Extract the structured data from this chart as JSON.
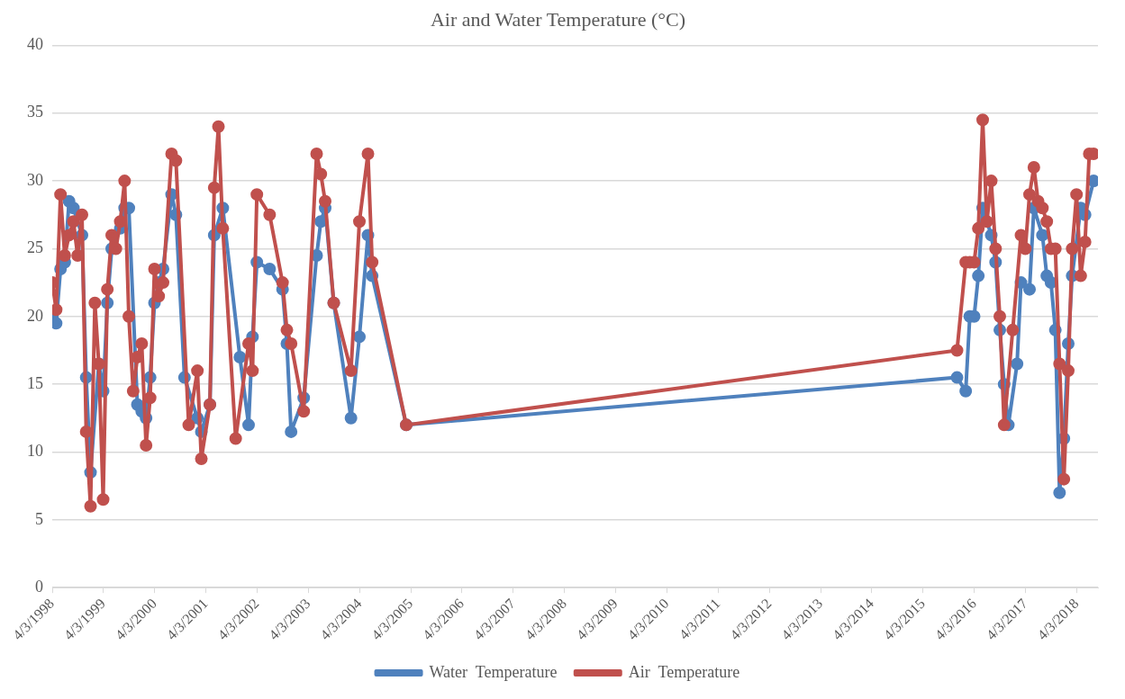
{
  "chart_data": {
    "type": "line",
    "title": "Air and Water Temperature (°C)",
    "xlim": [
      "1998-04-03",
      "2018-09"
    ],
    "xticks": [
      {
        "value": "1998-04-03",
        "label": "4/3/1998"
      },
      {
        "value": "1999-04-03",
        "label": "4/3/1999"
      },
      {
        "value": "2000-04-03",
        "label": "4/3/2000"
      },
      {
        "value": "2001-04-03",
        "label": "4/3/2001"
      },
      {
        "value": "2002-04-03",
        "label": "4/3/2002"
      },
      {
        "value": "2003-04-03",
        "label": "4/3/2003"
      },
      {
        "value": "2004-04-03",
        "label": "4/3/2004"
      },
      {
        "value": "2005-04-03",
        "label": "4/3/2005"
      },
      {
        "value": "2006-04-03",
        "label": "4/3/2006"
      },
      {
        "value": "2007-04-03",
        "label": "4/3/2007"
      },
      {
        "value": "2008-04-03",
        "label": "4/3/2008"
      },
      {
        "value": "2009-04-03",
        "label": "4/3/2009"
      },
      {
        "value": "2010-04-03",
        "label": "4/3/2010"
      },
      {
        "value": "2011-04-03",
        "label": "4/3/2011"
      },
      {
        "value": "2012-04-03",
        "label": "4/3/2012"
      },
      {
        "value": "2013-04-03",
        "label": "4/3/2013"
      },
      {
        "value": "2014-04-03",
        "label": "4/3/2014"
      },
      {
        "value": "2015-04-03",
        "label": "4/3/2015"
      },
      {
        "value": "2016-04-03",
        "label": "4/3/2016"
      },
      {
        "value": "2017-04-03",
        "label": "4/3/2017"
      },
      {
        "value": "2018-04-03",
        "label": "4/3/2018"
      }
    ],
    "ylim": [
      0,
      40
    ],
    "yticks": [
      0,
      5,
      10,
      15,
      20,
      25,
      30,
      35,
      40
    ],
    "grid": "y",
    "legend": "bottom",
    "marker": "circle",
    "line_style": "solid",
    "series": [
      {
        "name": "Water  Temperature",
        "color": "#4f81bd",
        "x": [
          "1998-04-03",
          "1998-05",
          "1998-06",
          "1998-07",
          "1998-08",
          "1998-09",
          "1998-11",
          "1998-12",
          "1999-01",
          "1999-03",
          "1999-04",
          "1999-05",
          "1999-06",
          "1999-08",
          "1999-09",
          "1999-10",
          "1999-12",
          "2000-01",
          "2000-02",
          "2000-03",
          "2000-04",
          "2000-05",
          "2000-06",
          "2000-08",
          "2000-09",
          "2000-11",
          "2001-02",
          "2001-03",
          "2001-05",
          "2001-06",
          "2001-08",
          "2001-12",
          "2002-02",
          "2002-03",
          "2002-04",
          "2002-07",
          "2002-10",
          "2002-11",
          "2002-12",
          "2003-03",
          "2003-06",
          "2003-07",
          "2003-08",
          "2003-10",
          "2004-02",
          "2004-04",
          "2004-06",
          "2004-07",
          "2005-03",
          "2015-12",
          "2016-02",
          "2016-03",
          "2016-04",
          "2016-05",
          "2016-06",
          "2016-08",
          "2016-09",
          "2016-10",
          "2016-11",
          "2016-12",
          "2017-02",
          "2017-03",
          "2017-05",
          "2017-06",
          "2017-08",
          "2017-09",
          "2017-10",
          "2017-11",
          "2017-12",
          "2018-01",
          "2018-02",
          "2018-03",
          "2018-05",
          "2018-06",
          "2018-08"
        ],
        "values": [
          20,
          19.5,
          23.5,
          24,
          28.5,
          28,
          26,
          15.5,
          8.5,
          16.5,
          14.5,
          21,
          25,
          26.5,
          28,
          28,
          13.5,
          13,
          12.5,
          15.5,
          21,
          22.5,
          23.5,
          29,
          27.5,
          15.5,
          12.5,
          11.5,
          13.5,
          26,
          28,
          17,
          12,
          18.5,
          24,
          23.5,
          22,
          18,
          11.5,
          14,
          24.5,
          27,
          28,
          21,
          12.5,
          18.5,
          26,
          23,
          12,
          15.5,
          14.5,
          20,
          20,
          23,
          28,
          26,
          24,
          19,
          15,
          12,
          16.5,
          22.5,
          22,
          28,
          26,
          23,
          22.5,
          19,
          7,
          11,
          18,
          23,
          28,
          27.5,
          30
        ]
      },
      {
        "name": "Air  Temperature",
        "color": "#c0504d",
        "x": [
          "1998-04-03",
          "1998-05",
          "1998-06",
          "1998-07",
          "1998-08",
          "1998-09",
          "1998-10",
          "1998-11",
          "1998-12",
          "1999-01",
          "1999-02",
          "1999-03",
          "1999-04",
          "1999-05",
          "1999-06",
          "1999-07",
          "1999-08",
          "1999-09",
          "1999-10",
          "1999-11",
          "1999-12",
          "2000-01",
          "2000-02",
          "2000-03",
          "2000-04",
          "2000-05",
          "2000-06",
          "2000-08",
          "2000-09",
          "2000-12",
          "2001-02",
          "2001-03",
          "2001-05",
          "2001-06",
          "2001-07",
          "2001-08",
          "2001-11",
          "2002-02",
          "2002-03",
          "2002-04",
          "2002-07",
          "2002-10",
          "2002-11",
          "2002-12",
          "2003-03",
          "2003-06",
          "2003-07",
          "2003-08",
          "2003-10",
          "2004-02",
          "2004-04",
          "2004-06",
          "2004-07",
          "2005-03",
          "2015-12",
          "2016-02",
          "2016-03",
          "2016-04",
          "2016-05",
          "2016-06",
          "2016-07",
          "2016-08",
          "2016-09",
          "2016-10",
          "2016-11",
          "2017-01",
          "2017-03",
          "2017-04",
          "2017-05",
          "2017-06",
          "2017-07",
          "2017-08",
          "2017-09",
          "2017-10",
          "2017-11",
          "2017-12",
          "2018-01",
          "2018-02",
          "2018-03",
          "2018-04",
          "2018-05",
          "2018-06",
          "2018-07",
          "2018-08"
        ],
        "values": [
          22.5,
          20.5,
          29,
          24.5,
          26,
          27,
          24.5,
          27.5,
          11.5,
          6,
          21,
          16.5,
          6.5,
          22,
          26,
          25,
          27,
          30,
          20,
          14.5,
          17,
          18,
          10.5,
          14,
          23.5,
          21.5,
          22.5,
          32,
          31.5,
          12,
          16,
          9.5,
          13.5,
          29.5,
          34,
          26.5,
          11,
          18,
          16,
          29,
          27.5,
          22.5,
          19,
          18,
          13,
          32,
          30.5,
          28.5,
          21,
          16,
          27,
          32,
          24,
          12,
          17.5,
          24,
          24,
          24,
          26.5,
          34.5,
          27,
          30,
          25,
          20,
          12,
          19,
          26,
          25,
          29,
          31,
          28.5,
          28,
          27,
          25,
          25,
          16.5,
          8,
          16,
          25,
          29,
          23,
          25.5,
          32,
          32
        ]
      }
    ]
  }
}
